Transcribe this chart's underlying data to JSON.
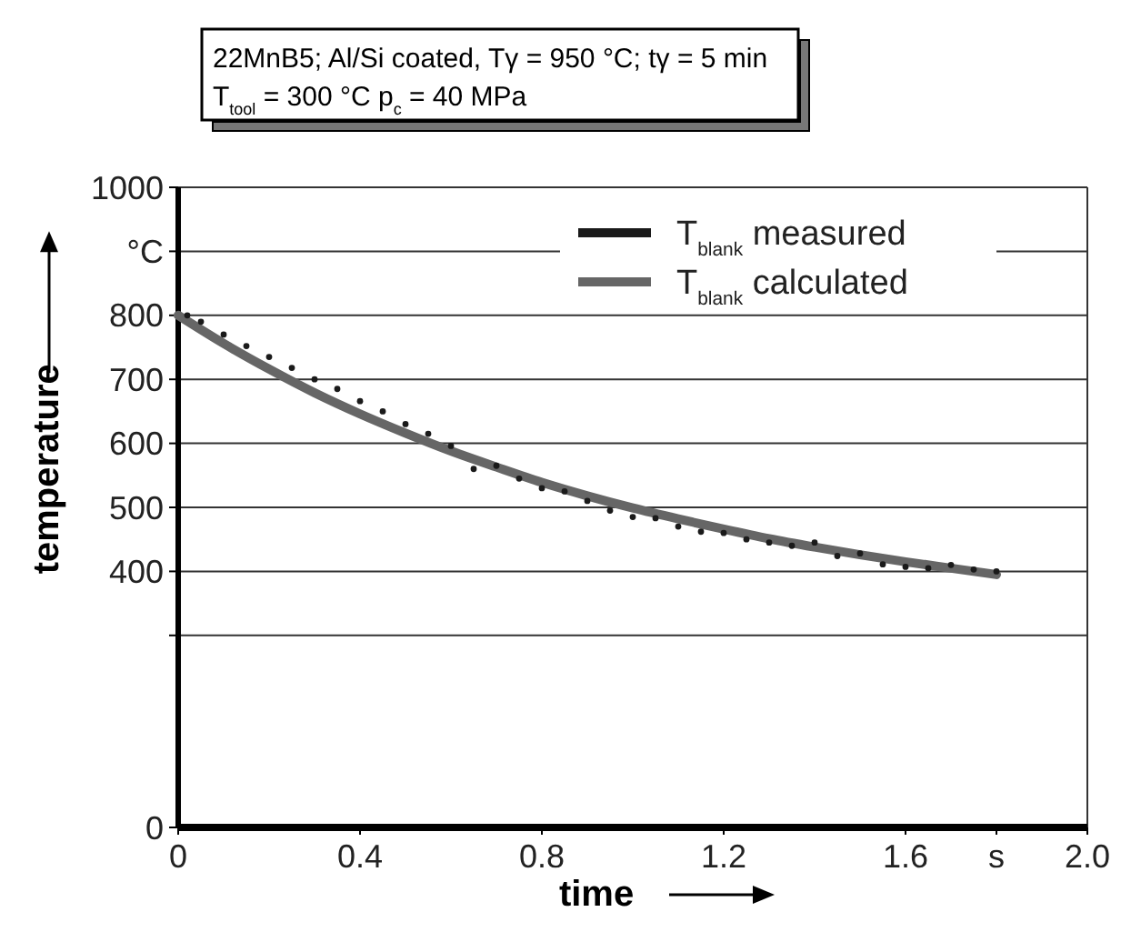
{
  "chart_data": {
    "type": "line",
    "title": "22MnB5; Al/Si coated, Tγ = 950 °C; tγ = 5 min",
    "subtitle": "T$_{tool}$ = 300 °C p$_{c}$ = 40 MPa",
    "xlabel": "time",
    "ylabel": "temperature",
    "xlim": [
      0,
      2.0
    ],
    "xticks": [
      0,
      0.4,
      0.8,
      1.2,
      1.6,
      {
        "value": 1.8,
        "label": "s"
      },
      {
        "value": 2.0,
        "label": "2.0"
      }
    ],
    "ylim": [
      0,
      1000
    ],
    "yticks": [
      0,
      {
        "value": 300,
        "label": null
      },
      400,
      500,
      600,
      700,
      800,
      {
        "value": 900,
        "label": "°C"
      },
      1000
    ],
    "grid": "y",
    "legend": "top right",
    "series": [
      {
        "name": "T$_{blank}$ measured",
        "type": "scatter",
        "marker": "circle",
        "color": "#1a1a1a",
        "x": [
          0.02,
          0.05,
          0.1,
          0.15,
          0.2,
          0.25,
          0.3,
          0.35,
          0.4,
          0.45,
          0.5,
          0.55,
          0.6,
          0.65,
          0.7,
          0.75,
          0.8,
          0.85,
          0.9,
          0.95,
          1.0,
          1.05,
          1.1,
          1.15,
          1.2,
          1.25,
          1.3,
          1.35,
          1.4,
          1.45,
          1.5,
          1.55,
          1.6,
          1.65,
          1.7,
          1.75,
          1.8
        ],
        "values": [
          800,
          790,
          770,
          752,
          735,
          718,
          700,
          685,
          666,
          650,
          630,
          615,
          596,
          560,
          565,
          545,
          530,
          525,
          510,
          495,
          485,
          483,
          470,
          462,
          460,
          450,
          445,
          440,
          445,
          424,
          428,
          411,
          407,
          405,
          410,
          403,
          400
        ]
      },
      {
        "name": "T$_{blank}$ calculated",
        "marker": "none",
        "color": "#666666",
        "x": [
          0,
          0.1,
          0.2,
          0.3,
          0.4,
          0.5,
          0.6,
          0.7,
          0.8,
          0.9,
          1.0,
          1.1,
          1.2,
          1.3,
          1.4,
          1.5,
          1.6,
          1.7,
          1.8
        ],
        "values": [
          800,
          756,
          716,
          679,
          646,
          616,
          588,
          563,
          539,
          518,
          499,
          482,
          466,
          451,
          438,
          426,
          415,
          405,
          395
        ]
      }
    ]
  }
}
